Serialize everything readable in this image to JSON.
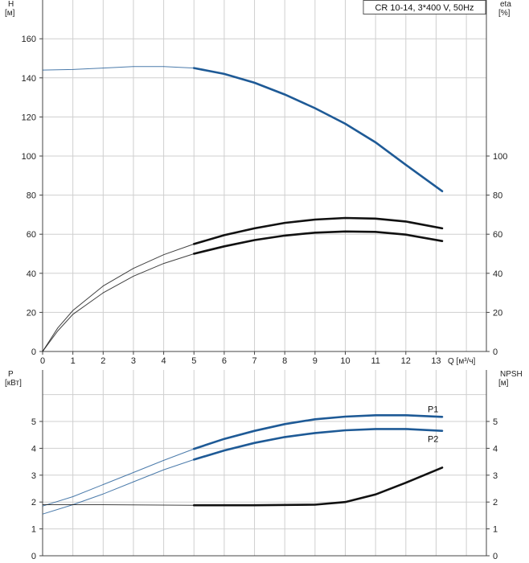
{
  "chart_data": [
    {
      "type": "line",
      "legend": "CR 10-14, 3*400 V, 50Hz",
      "x_axis": {
        "label": "Q",
        "unit": "[м³/ч]",
        "range": [
          0,
          14
        ],
        "ticks": [
          "0",
          "1",
          "2",
          "3",
          "4",
          "5",
          "6",
          "7",
          "8",
          "9",
          "10",
          "11",
          "12",
          "13"
        ]
      },
      "y_left": {
        "label": "H",
        "unit": "[м]",
        "range": [
          0,
          180
        ],
        "ticks": [
          "0",
          "20",
          "40",
          "60",
          "80",
          "100",
          "120",
          "140",
          "160"
        ]
      },
      "y_right": {
        "label": "eta",
        "unit": "[%]",
        "range": [
          0,
          180
        ],
        "ticks": [
          "0",
          "20",
          "40",
          "60",
          "80",
          "100"
        ]
      },
      "grid": true,
      "series": [
        {
          "id": "H",
          "axis": "left",
          "color": "#1e5a96",
          "thin_until": 5,
          "points": [
            [
              0,
              144
            ],
            [
              1,
              144.3
            ],
            [
              2,
              145
            ],
            [
              3,
              145.8
            ],
            [
              4,
              145.8
            ],
            [
              5,
              145
            ],
            [
              6,
              142
            ],
            [
              7,
              137.5
            ],
            [
              8,
              131.5
            ],
            [
              9,
              124.5
            ],
            [
              10,
              116.5
            ],
            [
              11,
              107
            ],
            [
              12,
              95.5
            ],
            [
              13.2,
              82
            ]
          ]
        },
        {
          "id": "eta_upper",
          "axis": "right",
          "color": "#111111",
          "thin_until": 5,
          "points": [
            [
              0,
              0
            ],
            [
              0.5,
              12
            ],
            [
              1,
              21
            ],
            [
              2,
              33.5
            ],
            [
              3,
              42.5
            ],
            [
              4,
              49.5
            ],
            [
              5,
              55
            ],
            [
              6,
              59.5
            ],
            [
              7,
              63
            ],
            [
              8,
              65.8
            ],
            [
              9,
              67.5
            ],
            [
              10,
              68.3
            ],
            [
              11,
              68
            ],
            [
              12,
              66.5
            ],
            [
              13.2,
              63
            ]
          ]
        },
        {
          "id": "eta_lower",
          "axis": "right",
          "color": "#111111",
          "thin_until": 5,
          "points": [
            [
              0,
              0
            ],
            [
              0.5,
              10.5
            ],
            [
              1,
              19
            ],
            [
              2,
              30
            ],
            [
              3,
              38.5
            ],
            [
              4,
              45
            ],
            [
              5,
              50
            ],
            [
              6,
              53.8
            ],
            [
              7,
              57
            ],
            [
              8,
              59.3
            ],
            [
              9,
              60.8
            ],
            [
              10,
              61.4
            ],
            [
              11,
              61.2
            ],
            [
              12,
              59.8
            ],
            [
              13.2,
              56.5
            ]
          ]
        }
      ]
    },
    {
      "type": "line",
      "x_axis": {
        "range": [
          0,
          14
        ]
      },
      "y_left": {
        "label": "P",
        "unit": "[кВт]",
        "range": [
          0,
          6
        ],
        "ticks": [
          "0",
          "1",
          "2",
          "3",
          "4",
          "5"
        ]
      },
      "y_right": {
        "label": "NPSH",
        "unit": "[м]",
        "range": [
          0,
          6
        ],
        "ticks": [
          "0",
          "1",
          "2",
          "3",
          "4",
          "5"
        ]
      },
      "grid": true,
      "series": [
        {
          "id": "P1",
          "name": "P1",
          "axis": "left",
          "color": "#1e5a96",
          "thin_until": 5,
          "points": [
            [
              0,
              1.85
            ],
            [
              1,
              2.2
            ],
            [
              2,
              2.65
            ],
            [
              3,
              3.1
            ],
            [
              4,
              3.55
            ],
            [
              5,
              3.98
            ],
            [
              6,
              4.35
            ],
            [
              7,
              4.65
            ],
            [
              8,
              4.9
            ],
            [
              9,
              5.08
            ],
            [
              10,
              5.18
            ],
            [
              11,
              5.23
            ],
            [
              12,
              5.23
            ],
            [
              13.2,
              5.17
            ]
          ]
        },
        {
          "id": "P2",
          "name": "P2",
          "axis": "left",
          "color": "#1e5a96",
          "thin_until": 5,
          "points": [
            [
              0,
              1.55
            ],
            [
              1,
              1.9
            ],
            [
              2,
              2.3
            ],
            [
              3,
              2.75
            ],
            [
              4,
              3.2
            ],
            [
              5,
              3.58
            ],
            [
              6,
              3.92
            ],
            [
              7,
              4.2
            ],
            [
              8,
              4.42
            ],
            [
              9,
              4.57
            ],
            [
              10,
              4.67
            ],
            [
              11,
              4.72
            ],
            [
              12,
              4.72
            ],
            [
              13.2,
              4.65
            ]
          ]
        },
        {
          "id": "NPSH",
          "axis": "right",
          "color": "#111111",
          "thin_until": 5,
          "points": [
            [
              0,
              1.9
            ],
            [
              2,
              1.9
            ],
            [
              5,
              1.88
            ],
            [
              7,
              1.88
            ],
            [
              9,
              1.9
            ],
            [
              10,
              2
            ],
            [
              11,
              2.28
            ],
            [
              12,
              2.72
            ],
            [
              13.2,
              3.28
            ]
          ]
        }
      ]
    }
  ]
}
